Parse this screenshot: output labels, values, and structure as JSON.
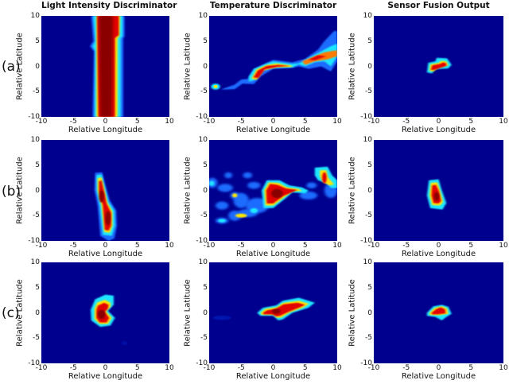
{
  "figure": {
    "column_titles": [
      "Light Intensity Discriminator",
      "Temperature Discriminator",
      "Sensor Fusion Output"
    ],
    "row_labels": [
      "(a)",
      "(b)",
      "(c)"
    ],
    "xlabel": "Relative Longitude",
    "ylabel": "Relative Latitude",
    "x_ticks": [
      "-10",
      "-5",
      "0",
      "5",
      "10"
    ],
    "y_ticks": [
      "10",
      "5",
      "0",
      "-5",
      "-10"
    ]
  },
  "chart_data": [
    {
      "type": "heatmap",
      "row": "(a)",
      "title": "Light Intensity Discriminator",
      "xlabel": "Relative Longitude",
      "ylabel": "Relative Latitude",
      "xlim": [
        -10,
        10
      ],
      "ylim": [
        -10,
        10
      ],
      "colormap": "jet",
      "grid": false,
      "description": "Vertical high-intensity band spanning full latitude range, centered near longitude 0 (about -1.5 to 2.5), slightly wider above latitude 5",
      "hotspots": [
        {
          "x": 0.5,
          "y": 0,
          "width": 3,
          "height": 20,
          "intensity": 1.0
        }
      ]
    },
    {
      "type": "heatmap",
      "row": "(a)",
      "title": "Temperature Discriminator",
      "xlabel": "Relative Longitude",
      "ylabel": "Relative Latitude",
      "xlim": [
        -10,
        10
      ],
      "ylim": [
        -10,
        10
      ],
      "colormap": "jet",
      "grid": false,
      "description": "Diagonal streak rising from (-9,-4) to (10,4), strongest between longitude -3 and 9",
      "hotspots": [
        {
          "x": -9,
          "y": -4,
          "intensity": 0.6
        },
        {
          "x": -2,
          "y": -1,
          "intensity": 0.95
        },
        {
          "x": 1,
          "y": 0,
          "intensity": 1.0
        },
        {
          "x": 7,
          "y": 2,
          "intensity": 1.0
        },
        {
          "x": 9.5,
          "y": 5,
          "intensity": 0.5
        }
      ]
    },
    {
      "type": "heatmap",
      "row": "(a)",
      "title": "Sensor Fusion Output",
      "xlabel": "Relative Longitude",
      "ylabel": "Relative Latitude",
      "xlim": [
        -10,
        10
      ],
      "ylim": [
        -10,
        10
      ],
      "colormap": "jet",
      "grid": false,
      "hotspots": [
        {
          "x": 0,
          "y": 0,
          "width": 3,
          "height": 2,
          "intensity": 1.0
        }
      ]
    },
    {
      "type": "heatmap",
      "row": "(b)",
      "title": "Light Intensity Discriminator",
      "xlabel": "Relative Longitude",
      "ylabel": "Relative Latitude",
      "xlim": [
        -10,
        10
      ],
      "ylim": [
        -10,
        10
      ],
      "colormap": "jet",
      "grid": false,
      "description": "Elongated vertical blob from latitude 3 to -9 near longitude 0",
      "hotspots": [
        {
          "x": -0.5,
          "y": -1,
          "intensity": 1.0
        },
        {
          "x": 0.5,
          "y": -6,
          "intensity": 1.0
        }
      ]
    },
    {
      "type": "heatmap",
      "row": "(b)",
      "title": "Temperature Discriminator",
      "xlabel": "Relative Longitude",
      "ylabel": "Relative Latitude",
      "xlim": [
        -10,
        10
      ],
      "ylim": [
        -10,
        10
      ],
      "colormap": "jet",
      "grid": false,
      "description": "Scattered low-level clusters on left, strong blob at (0,-1), streak to (4,0), secondary blob at (8,3)",
      "hotspots": [
        {
          "x": 0.5,
          "y": -1,
          "intensity": 1.0
        },
        {
          "x": 4,
          "y": 0,
          "intensity": 0.8
        },
        {
          "x": 8,
          "y": 2.5,
          "intensity": 0.9
        },
        {
          "x": -6,
          "y": -1,
          "intensity": 0.5
        },
        {
          "x": -5,
          "y": -5,
          "intensity": 0.5
        },
        {
          "x": -8,
          "y": -6,
          "intensity": 0.4
        }
      ]
    },
    {
      "type": "heatmap",
      "row": "(b)",
      "title": "Sensor Fusion Output",
      "xlabel": "Relative Longitude",
      "ylabel": "Relative Latitude",
      "xlim": [
        -10,
        10
      ],
      "ylim": [
        -10,
        10
      ],
      "colormap": "jet",
      "grid": false,
      "hotspots": [
        {
          "x": -0.5,
          "y": -1,
          "width": 2,
          "height": 5,
          "intensity": 1.0
        }
      ]
    },
    {
      "type": "heatmap",
      "row": "(c)",
      "title": "Light Intensity Discriminator",
      "xlabel": "Relative Longitude",
      "ylabel": "Relative Latitude",
      "xlim": [
        -10,
        10
      ],
      "ylim": [
        -10,
        10
      ],
      "colormap": "jet",
      "grid": false,
      "hotspots": [
        {
          "x": -0.5,
          "y": 0,
          "width": 3,
          "height": 5,
          "intensity": 1.0
        }
      ]
    },
    {
      "type": "heatmap",
      "row": "(c)",
      "title": "Temperature Discriminator",
      "xlabel": "Relative Longitude",
      "ylabel": "Relative Latitude",
      "xlim": [
        -10,
        10
      ],
      "ylim": [
        -10,
        10
      ],
      "colormap": "jet",
      "grid": false,
      "description": "Diagonal blob from (-2,0) to (6,2)",
      "hotspots": [
        {
          "x": 0.5,
          "y": 0.3,
          "intensity": 1.0
        },
        {
          "x": 3.5,
          "y": 1.5,
          "intensity": 1.0
        },
        {
          "x": -8,
          "y": -1,
          "intensity": 0.1
        }
      ]
    },
    {
      "type": "heatmap",
      "row": "(c)",
      "title": "Sensor Fusion Output",
      "xlabel": "Relative Longitude",
      "ylabel": "Relative Latitude",
      "xlim": [
        -10,
        10
      ],
      "ylim": [
        -10,
        10
      ],
      "colormap": "jet",
      "grid": false,
      "hotspots": [
        {
          "x": 0,
          "y": 0.5,
          "width": 3,
          "height": 2,
          "intensity": 1.0
        }
      ]
    }
  ]
}
